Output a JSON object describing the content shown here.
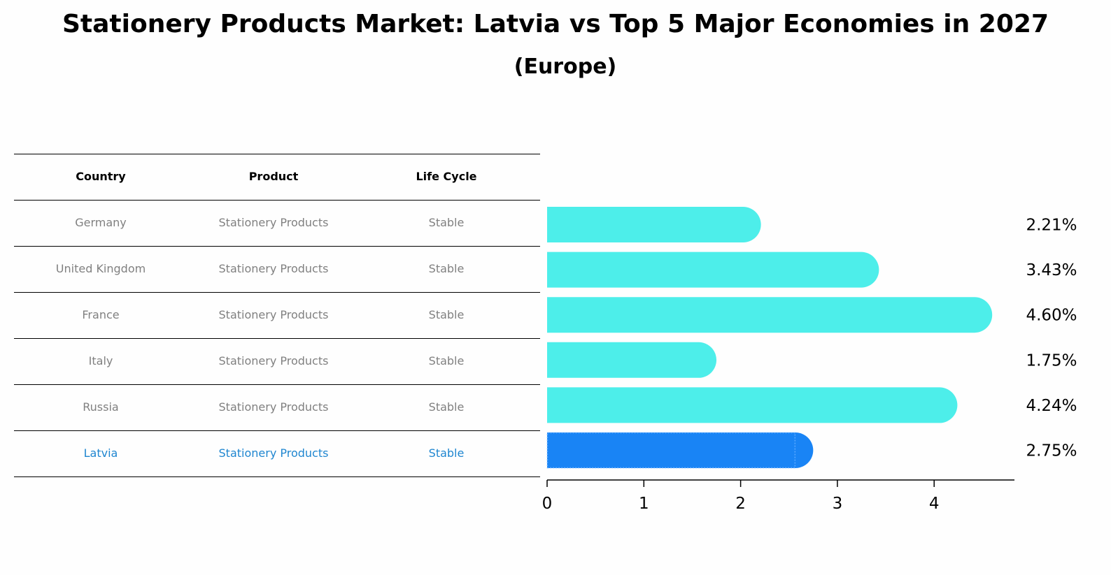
{
  "title": "Stationery Products Market: Latvia vs Top 5 Major Economies in 2027",
  "subtitle": "(Europe)",
  "table": {
    "headers": [
      "Country",
      "Product",
      "Life Cycle"
    ],
    "rows": [
      [
        "Germany",
        "Stationery Products",
        "Stable"
      ],
      [
        "United Kingdom",
        "Stationery Products",
        "Stable"
      ],
      [
        "France",
        "Stationery Products",
        "Stable"
      ],
      [
        "Italy",
        "Stationery Products",
        "Stable"
      ],
      [
        "Russia",
        "Stationery Products",
        "Stable"
      ],
      [
        "Latvia",
        "Stationery Products",
        "Stable"
      ]
    ],
    "highlight_row": 5,
    "text_color": "#808080",
    "highlight_color": "#1f86d0"
  },
  "chart_data": {
    "type": "bar",
    "orientation": "horizontal",
    "categories": [
      "Germany",
      "United Kingdom",
      "France",
      "Italy",
      "Russia",
      "Latvia"
    ],
    "values": [
      2.21,
      3.43,
      4.6,
      1.75,
      4.24,
      2.75
    ],
    "value_labels": [
      "2.21%",
      "3.43%",
      "4.60%",
      "1.75%",
      "4.24%",
      "2.75%"
    ],
    "xlim": [
      0,
      4.83
    ],
    "xticks": [
      0,
      1,
      2,
      3,
      4
    ],
    "xlabel": "",
    "ylabel": "",
    "bar_color": "#4deeea",
    "highlight_color": "#1984f5",
    "highlight_index": 5
  }
}
